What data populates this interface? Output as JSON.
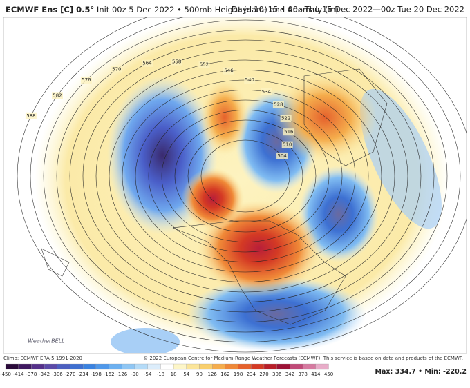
{
  "header": {
    "title": "ECMWF Ens [C] 0.5°",
    "subtitle": "Init 00z 5 Dec 2022 • 500mb Height (dam) and Anomaly (m)",
    "valid": "Days 10–15 • 00z Thu 15 Dec 2022—00z Tue 20 Dec 2022"
  },
  "map": {
    "contour_labels": [
      "588",
      "582",
      "576",
      "570",
      "564",
      "558",
      "552",
      "546",
      "540",
      "534",
      "528",
      "522",
      "516",
      "510",
      "504"
    ],
    "logo": "WeatherBELL"
  },
  "footer": {
    "climo": "Climo: ECMWF ERA-5 1991-2020",
    "copyright": "© 2022 European Centre for Medium-Range Weather Forecasts (ECMWF). This service is based on data and products of the ECMWF."
  },
  "colorbar": {
    "labels": [
      "-450",
      "-414",
      "-378",
      "-342",
      "-306",
      "-270",
      "-234",
      "-198",
      "-162",
      "-126",
      "-90",
      "-54",
      "-18",
      "18",
      "54",
      "90",
      "126",
      "162",
      "198",
      "234",
      "270",
      "306",
      "342",
      "378",
      "414",
      "450"
    ],
    "colors": [
      "#2a0a3a",
      "#3e1860",
      "#55308a",
      "#5b4aa8",
      "#4c5fc0",
      "#3e6fd0",
      "#3a82e0",
      "#4f98ea",
      "#6cb0f0",
      "#8fc6f4",
      "#b4dbf8",
      "#dcedfb",
      "#ffffff",
      "#fdf6c8",
      "#fbe59a",
      "#f9cf6c",
      "#f5ad4c",
      "#ef8838",
      "#e5612c",
      "#d43a24",
      "#b81e28",
      "#9c1236",
      "#c04a78",
      "#d67aa0",
      "#e8acc8"
    ]
  },
  "stats": {
    "max_label": "Max:",
    "max": "334.7",
    "separator": "•",
    "min_label": "Min:",
    "min": "-220.2"
  }
}
